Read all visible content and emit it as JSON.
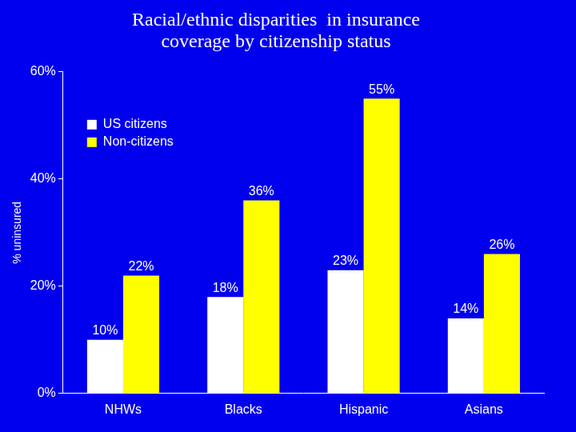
{
  "chart_data": {
    "type": "bar",
    "title": [
      "Racial/ethnic disparities  in insurance",
      "coverage by citizenship status"
    ],
    "y_label": "% uninsured",
    "categories": [
      "NHWs",
      "Blacks",
      "Hispanic",
      "Asians"
    ],
    "series": [
      {
        "name": "US citizens",
        "color": "#ffffff",
        "values": [
          10,
          18,
          23,
          14
        ],
        "value_labels": [
          "10%",
          "18%",
          "23%",
          "14%"
        ]
      },
      {
        "name": "Non-citizens",
        "color": "#ffff00",
        "values": [
          22,
          36,
          55,
          26
        ],
        "value_labels": [
          "22%",
          "36%",
          "55%",
          "26%"
        ]
      }
    ],
    "ylim": [
      0,
      60
    ],
    "yticks": [
      {
        "value": 0,
        "label": "0%"
      },
      {
        "value": 20,
        "label": "20%"
      },
      {
        "value": 40,
        "label": "40%"
      },
      {
        "value": 60,
        "label": "60%"
      }
    ],
    "grid": false,
    "legend": "upper left",
    "data_labels": true
  }
}
